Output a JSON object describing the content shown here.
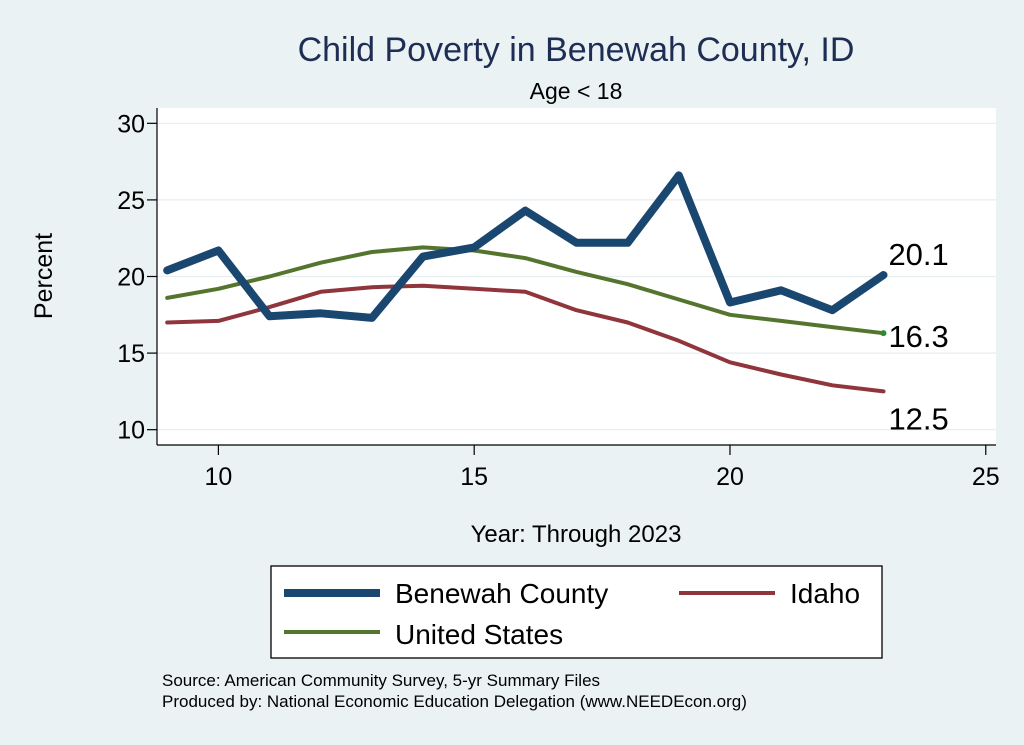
{
  "chart_data": {
    "type": "line",
    "title": "Child Poverty in Benewah County, ID",
    "subtitle": "Age < 18",
    "xlabel": "Year: Through 2023",
    "ylabel": "Percent",
    "xlim": [
      8.8,
      25.2
    ],
    "ylim": [
      9.0,
      31.0
    ],
    "xticks": [
      "10",
      "15",
      "20",
      "25"
    ],
    "yticks": [
      "10",
      "15",
      "20",
      "25",
      "30"
    ],
    "grid": true,
    "legend_position": "bottom",
    "x": [
      9,
      10,
      11,
      12,
      13,
      14,
      15,
      16,
      17,
      18,
      19,
      20,
      21,
      22,
      23
    ],
    "series": [
      {
        "name": "Benewah County",
        "color": "#1a476f",
        "values": [
          20.4,
          21.7,
          17.4,
          17.6,
          17.3,
          21.3,
          21.9,
          24.3,
          22.2,
          22.2,
          26.6,
          18.3,
          19.1,
          17.8,
          20.1
        ],
        "end_label": "20.1"
      },
      {
        "name": "Idaho",
        "color": "#90353b",
        "values": [
          17.0,
          17.1,
          18.0,
          19.0,
          19.3,
          19.4,
          19.2,
          19.0,
          17.8,
          17.0,
          15.8,
          14.4,
          13.6,
          12.9,
          12.5
        ],
        "end_label": "12.5"
      },
      {
        "name": "United States",
        "color": "#55752f",
        "values": [
          18.6,
          19.2,
          20.0,
          20.9,
          21.6,
          21.9,
          21.7,
          21.2,
          20.3,
          19.5,
          18.5,
          17.5,
          17.1,
          16.7,
          16.3
        ],
        "end_label": "16.3"
      }
    ]
  },
  "notes": {
    "source": "Source: American Community Survey, 5-yr Summary Files",
    "produced_by": "Produced by: National Economic Education Delegation (www.NEEDEcon.org)"
  }
}
